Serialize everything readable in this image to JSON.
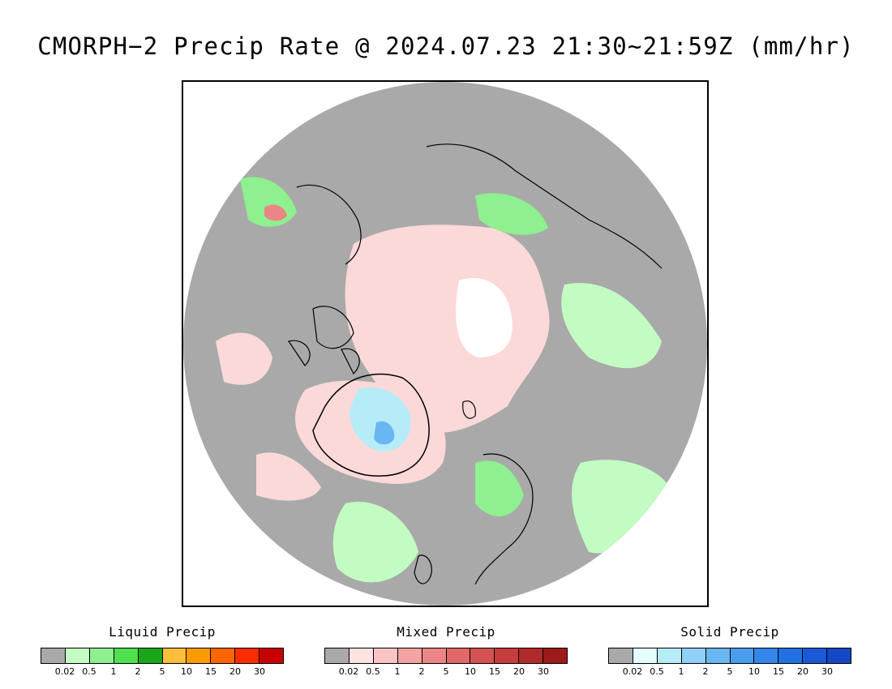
{
  "title": "CMORPH−2 Precip Rate @ 2024.07.23 21:30~21:59Z (mm/hr)",
  "map": {
    "background_color": "#a9a9a9",
    "coastline_color": "#000000",
    "no_data_color": "#ffffff"
  },
  "legend": {
    "tick_labels": [
      "0.02",
      "0.5",
      "1",
      "2",
      "5",
      "10",
      "15",
      "20",
      "30"
    ],
    "groups": [
      {
        "key": "liquid",
        "label": "Liquid Precip",
        "colors": [
          "#a9a9a9",
          "#c2fcc2",
          "#8ef08e",
          "#4ee04e",
          "#1aa61a",
          "#fdbf3b",
          "#fd9a00",
          "#fd6500",
          "#fb2d00",
          "#c80000"
        ]
      },
      {
        "key": "mixed",
        "label": "Mixed Precip",
        "colors": [
          "#a9a9a9",
          "#fde2e2",
          "#fbc4c4",
          "#f4a2a2",
          "#ec8585",
          "#e06868",
          "#d45252",
          "#c53e3e",
          "#b02a2a",
          "#9c1a1a"
        ]
      },
      {
        "key": "solid",
        "label": "Solid Precip",
        "colors": [
          "#a9a9a9",
          "#e4fdfd",
          "#b6ecf8",
          "#8ed0f6",
          "#6ab6f2",
          "#4a9cee",
          "#3486ea",
          "#2270e2",
          "#1a5ad6",
          "#1448c4"
        ]
      }
    ]
  }
}
